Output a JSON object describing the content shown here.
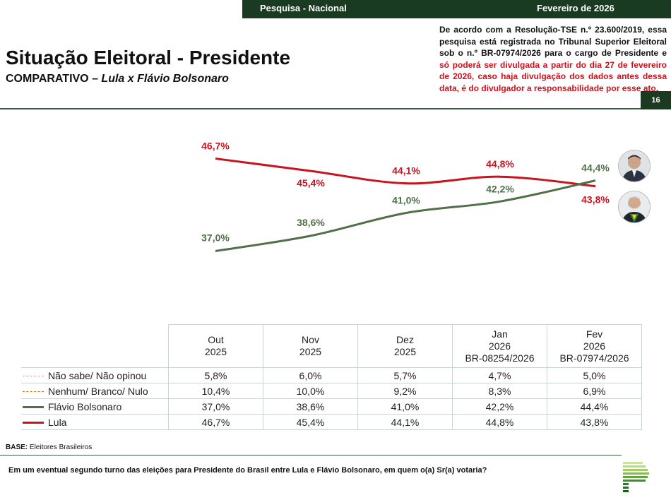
{
  "header": {
    "left": "Pesquisa - Nacional",
    "right": "Fevereiro de 2026",
    "page_number": "16"
  },
  "title": "Situação Eleitoral - Presidente",
  "subtitle_prefix": "COMPARATIVO – ",
  "subtitle_italic": "Lula x Flávio Bolsonaro",
  "notice_black": "De acordo com a Resolução-TSE n.º 23.600/2019, essa pesquisa está registrada no Tribunal Superior Eleitoral sob o n.º BR-07974/2026 para o cargo de Presidente e ",
  "notice_red": "só poderá ser divulgada a partir do dia 27 de fevereiro de 2026, caso haja divulgação dos dados antes dessa data, é do divulgador a responsabilidade por esse ato.",
  "chart_data": {
    "type": "line",
    "title": "",
    "xlabel": "",
    "ylabel": "",
    "ylim": [
      30,
      50
    ],
    "grid": false,
    "categories": [
      "Out 2025",
      "Nov 2025",
      "Dez 2025",
      "Jan 2026",
      "Fev 2026"
    ],
    "series": [
      {
        "name": "Lula",
        "color": "#c8141e",
        "values": [
          46.7,
          45.4,
          44.1,
          44.8,
          43.8
        ],
        "labels": [
          "46,7%",
          "45,4%",
          "44,1%",
          "44,8%",
          "43,8%"
        ]
      },
      {
        "name": "Flávio Bolsonaro",
        "color": "#4f7048",
        "values": [
          37.0,
          38.6,
          41.0,
          42.2,
          44.4
        ],
        "labels": [
          "37,0%",
          "38,6%",
          "41,0%",
          "42,2%",
          "44,4%"
        ]
      }
    ],
    "photo_icons": [
      "flavio-bolsonaro-photo",
      "lula-photo"
    ]
  },
  "table": {
    "headers": [
      [
        "Out",
        "2025",
        ""
      ],
      [
        "Nov",
        "2025",
        ""
      ],
      [
        "Dez",
        "2025",
        ""
      ],
      [
        "Jan",
        "2026",
        "BR-08254/2026"
      ],
      [
        "Fev",
        "2026",
        "BR-07974/2026"
      ]
    ],
    "rows": [
      {
        "label": "Não sabe/ Não opinou",
        "legend_style": "dashed-gray",
        "values": [
          "5,8%",
          "6,0%",
          "5,7%",
          "4,7%",
          "5,0%"
        ]
      },
      {
        "label": "Nenhum/ Branco/ Nulo",
        "legend_style": "dashed-orange",
        "values": [
          "10,4%",
          "10,0%",
          "9,2%",
          "8,3%",
          "6,9%"
        ]
      },
      {
        "label": "Flávio Bolsonaro",
        "legend_style": "solid-green",
        "values": [
          "37,0%",
          "38,6%",
          "41,0%",
          "42,2%",
          "44,4%"
        ]
      },
      {
        "label": "Lula",
        "legend_style": "solid-red",
        "values": [
          "46,7%",
          "45,4%",
          "44,1%",
          "44,8%",
          "43,8%"
        ]
      }
    ]
  },
  "base_label": "BASE:",
  "base_text": " Eleitores Brasileiros",
  "question": "Em um eventual segundo turno das eleições para Presidente do Brasil entre Lula e Flávio Bolsonaro, em quem o(a) Sr(a) votaria?",
  "colors": {
    "brand_dark": "#1b3a22",
    "lula": "#c8141e",
    "flavio": "#4f7048",
    "notice_red": "#d0101a"
  }
}
